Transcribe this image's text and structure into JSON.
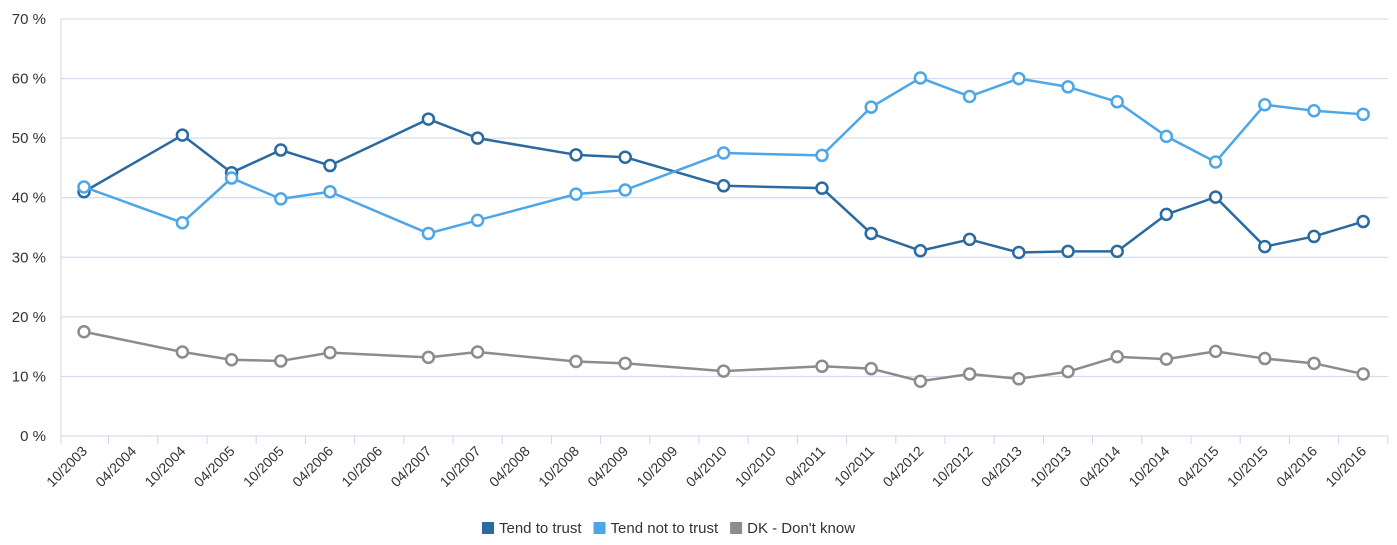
{
  "chart_data": {
    "type": "line",
    "x": [
      "10/2003",
      "04/2004",
      "10/2004",
      "04/2005",
      "10/2005",
      "04/2006",
      "10/2006",
      "04/2007",
      "10/2007",
      "04/2008",
      "10/2008",
      "04/2009",
      "10/2009",
      "04/2010",
      "10/2010",
      "04/2011",
      "10/2011",
      "04/2012",
      "10/2012",
      "04/2013",
      "10/2013",
      "04/2014",
      "10/2014",
      "04/2015",
      "10/2015",
      "04/2016",
      "10/2016"
    ],
    "ylim": [
      0,
      70
    ],
    "yticks": [
      0,
      10,
      20,
      30,
      40,
      50,
      60,
      70
    ],
    "y_tick_suffix": " %",
    "grid": true,
    "legend_placement": "bottom-center",
    "series": [
      {
        "name": "Tend to trust",
        "color": "#2b6aa0",
        "values": [
          41,
          null,
          50.5,
          44.2,
          48,
          45.4,
          null,
          53.2,
          50,
          null,
          47.2,
          46.8,
          null,
          42,
          null,
          41.6,
          34,
          31.1,
          33,
          30.8,
          31,
          31,
          37.2,
          40.1,
          31.8,
          33.5,
          36
        ]
      },
      {
        "name": "Tend not to trust",
        "color": "#4da6e8",
        "values": [
          41.8,
          null,
          35.8,
          43.3,
          39.8,
          41,
          null,
          34,
          36.2,
          null,
          40.6,
          41.3,
          null,
          47.5,
          null,
          47.1,
          55.2,
          60.1,
          57,
          60,
          58.6,
          56.1,
          50.3,
          46,
          55.6,
          54.6,
          54
        ]
      },
      {
        "name": "DK - Don't know",
        "color": "#8c8c8c",
        "values": [
          17.5,
          null,
          14.1,
          12.8,
          12.6,
          14,
          null,
          13.2,
          14.1,
          null,
          12.5,
          12.2,
          null,
          10.9,
          null,
          11.7,
          11.3,
          9.2,
          10.4,
          9.6,
          10.8,
          13.3,
          12.9,
          14.2,
          13,
          12.2,
          10.4
        ]
      }
    ]
  }
}
